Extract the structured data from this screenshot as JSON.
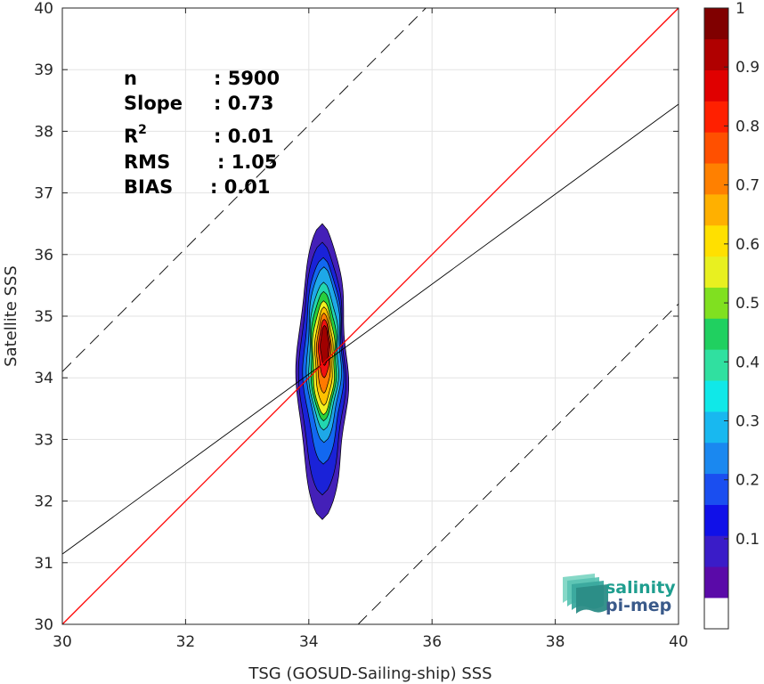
{
  "chart_data": {
    "type": "contour",
    "xlabel": "TSG (GOSUD-Sailing-ship) SSS",
    "ylabel": "Satellite SSS",
    "xlim": [
      30,
      40
    ],
    "ylim": [
      30,
      40
    ],
    "xticks": [
      30,
      32,
      34,
      36,
      38,
      40
    ],
    "yticks": [
      30,
      31,
      32,
      33,
      34,
      35,
      36,
      37,
      38,
      39,
      40
    ],
    "grid": true,
    "stats": [
      {
        "label": "n",
        "value": ": 5900"
      },
      {
        "label": "Slope",
        "value": ": 0.73"
      },
      {
        "label": "R",
        "sup": "2",
        "value": ": 0.01"
      },
      {
        "label": "RMS",
        "value": ": 1.05"
      },
      {
        "label": "BIAS",
        "value": ": 0.01"
      }
    ],
    "lines": {
      "one_to_one": {
        "slope": 1,
        "intercept": 0,
        "color": "#ff0000"
      },
      "regression": {
        "slope": 0.73,
        "intercept": 9.24,
        "color": "#000000"
      },
      "upper_bound": {
        "slope": 1,
        "intercept": 4.1,
        "color": "#000000",
        "dash": true
      },
      "lower_bound": {
        "slope": 1,
        "intercept": -4.8,
        "color": "#000000",
        "dash": true
      }
    },
    "density_peak": {
      "x": 34.25,
      "y": 34.5
    },
    "contour_levels": [
      {
        "level": 0.05,
        "x0": 33.82,
        "x1": 34.62,
        "y0": 31.7,
        "y1": 36.5,
        "color": "#4420b8"
      },
      {
        "level": 0.1,
        "x0": 33.86,
        "x1": 34.58,
        "y0": 32.1,
        "y1": 36.2,
        "color": "#1a22d8"
      },
      {
        "level": 0.2,
        "x0": 33.92,
        "x1": 34.55,
        "y0": 32.6,
        "y1": 35.95,
        "color": "#1268f0"
      },
      {
        "level": 0.3,
        "x0": 33.97,
        "x1": 34.52,
        "y0": 32.95,
        "y1": 35.8,
        "color": "#1ea8e8"
      },
      {
        "level": 0.4,
        "x0": 34.0,
        "x1": 34.48,
        "y0": 33.15,
        "y1": 35.55,
        "color": "#22d6b0"
      },
      {
        "level": 0.5,
        "x0": 34.03,
        "x1": 34.45,
        "y0": 33.3,
        "y1": 35.4,
        "color": "#28cf3c"
      },
      {
        "level": 0.6,
        "x0": 34.06,
        "x1": 34.42,
        "y0": 33.4,
        "y1": 35.25,
        "color": "#f0f020"
      },
      {
        "level": 0.7,
        "x0": 34.1,
        "x1": 34.39,
        "y0": 33.55,
        "y1": 35.15,
        "color": "#ffc000"
      },
      {
        "level": 0.8,
        "x0": 34.13,
        "x1": 34.36,
        "y0": 33.75,
        "y1": 35.05,
        "color": "#ff7a00"
      },
      {
        "level": 0.9,
        "x0": 34.16,
        "x1": 34.34,
        "y0": 34.0,
        "y1": 34.95,
        "color": "#f01010"
      },
      {
        "level": 1.0,
        "x0": 34.19,
        "x1": 34.32,
        "y0": 34.2,
        "y1": 34.85,
        "color": "#a00000"
      }
    ],
    "colorbar": {
      "ticks": [
        "0.1",
        "0.2",
        "0.3",
        "0.4",
        "0.5",
        "0.6",
        "0.7",
        "0.8",
        "0.9",
        "1"
      ],
      "colors": [
        "#ffffff",
        "#5a0aa8",
        "#3a1cc8",
        "#1010e8",
        "#1a4ef0",
        "#1a88f0",
        "#18b8f0",
        "#10e8e8",
        "#30e0a0",
        "#20d060",
        "#80e020",
        "#e8f020",
        "#ffe000",
        "#ffb000",
        "#ff8000",
        "#ff5000",
        "#ff2000",
        "#e00000",
        "#b00000",
        "#800000"
      ]
    }
  },
  "logo": {
    "line1": "salinity",
    "line2": "pi-mep"
  }
}
